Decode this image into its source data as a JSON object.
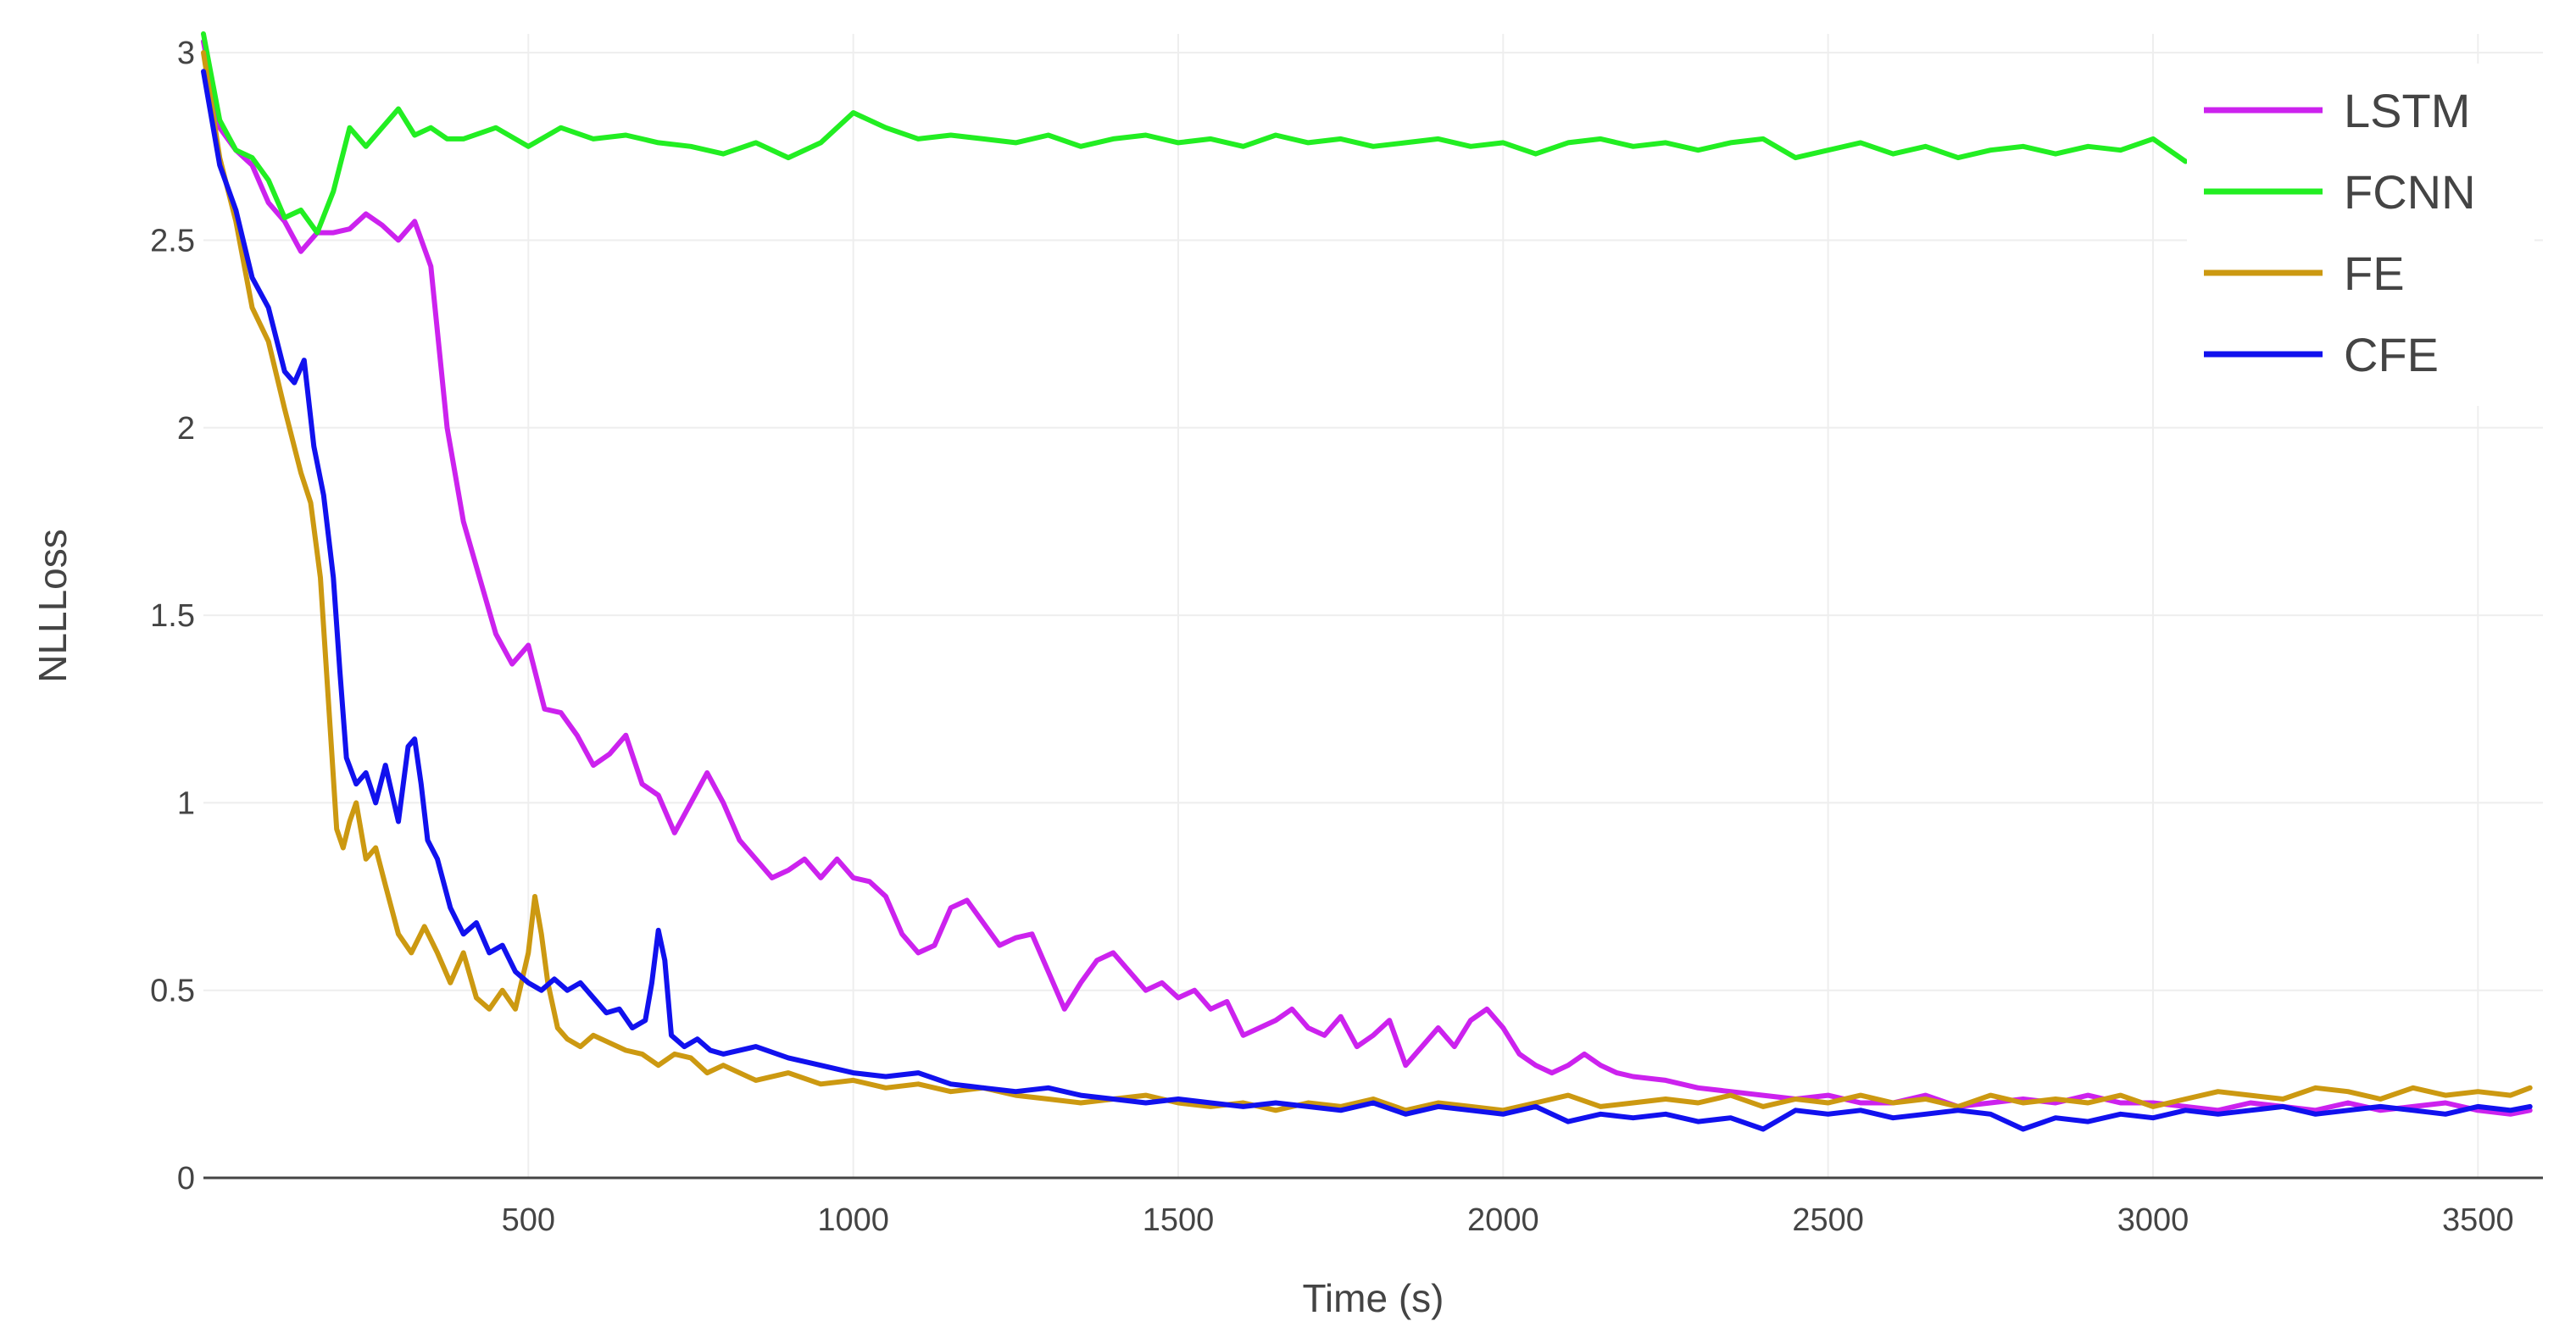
{
  "chart_data": {
    "type": "line",
    "title": "",
    "xlabel": "Time (s)",
    "ylabel": "NLLLoss",
    "xlim": [
      0,
      3600
    ],
    "ylim": [
      0,
      3.05
    ],
    "xticks": [
      500,
      1000,
      1500,
      2000,
      2500,
      3000,
      3500
    ],
    "xtick_labels": [
      "500",
      "1000",
      "1500",
      "2000",
      "2500",
      "3000",
      "3500"
    ],
    "yticks": [
      0,
      0.5,
      1,
      1.5,
      2,
      2.5,
      3
    ],
    "ytick_labels": [
      "0",
      "0.5",
      "1",
      "1.5",
      "2",
      "2.5",
      "3"
    ],
    "grid": true,
    "legend_position": "top-right",
    "series": [
      {
        "name": "LSTM",
        "color": "#cc22ee",
        "x": [
          0,
          25,
          50,
          75,
          100,
          125,
          150,
          175,
          200,
          225,
          250,
          275,
          300,
          325,
          350,
          375,
          400,
          425,
          450,
          475,
          500,
          525,
          550,
          575,
          600,
          625,
          650,
          675,
          700,
          725,
          750,
          775,
          800,
          825,
          850,
          875,
          900,
          925,
          950,
          975,
          1000,
          1025,
          1050,
          1075,
          1100,
          1125,
          1150,
          1175,
          1200,
          1225,
          1250,
          1275,
          1300,
          1325,
          1350,
          1375,
          1400,
          1425,
          1450,
          1475,
          1500,
          1525,
          1550,
          1575,
          1600,
          1625,
          1650,
          1675,
          1700,
          1725,
          1750,
          1775,
          1800,
          1825,
          1850,
          1875,
          1900,
          1925,
          1950,
          1975,
          2000,
          2025,
          2050,
          2075,
          2100,
          2125,
          2150,
          2175,
          2200,
          2250,
          2300,
          2350,
          2400,
          2450,
          2500,
          2550,
          2600,
          2650,
          2700,
          2750,
          2800,
          2850,
          2900,
          2950,
          3000,
          3050,
          3100,
          3150,
          3200,
          3250,
          3300,
          3350,
          3400,
          3450,
          3500,
          3550,
          3580
        ],
        "values": [
          3.03,
          2.8,
          2.74,
          2.7,
          2.6,
          2.55,
          2.47,
          2.52,
          2.52,
          2.53,
          2.57,
          2.54,
          2.5,
          2.55,
          2.43,
          2.0,
          1.75,
          1.6,
          1.45,
          1.37,
          1.42,
          1.25,
          1.24,
          1.18,
          1.1,
          1.13,
          1.18,
          1.05,
          1.02,
          0.92,
          1.0,
          1.08,
          1.0,
          0.9,
          0.85,
          0.8,
          0.82,
          0.85,
          0.8,
          0.85,
          0.8,
          0.79,
          0.75,
          0.65,
          0.6,
          0.62,
          0.72,
          0.74,
          0.68,
          0.62,
          0.64,
          0.65,
          0.55,
          0.45,
          0.52,
          0.58,
          0.6,
          0.55,
          0.5,
          0.52,
          0.48,
          0.5,
          0.45,
          0.47,
          0.38,
          0.4,
          0.42,
          0.45,
          0.4,
          0.38,
          0.43,
          0.35,
          0.38,
          0.42,
          0.3,
          0.35,
          0.4,
          0.35,
          0.42,
          0.45,
          0.4,
          0.33,
          0.3,
          0.28,
          0.3,
          0.33,
          0.3,
          0.28,
          0.27,
          0.26,
          0.24,
          0.23,
          0.22,
          0.21,
          0.22,
          0.2,
          0.2,
          0.22,
          0.19,
          0.2,
          0.21,
          0.2,
          0.22,
          0.2,
          0.2,
          0.19,
          0.18,
          0.2,
          0.19,
          0.18,
          0.2,
          0.18,
          0.19,
          0.2,
          0.18,
          0.17,
          0.18
        ]
      },
      {
        "name": "FCNN",
        "color": "#22ee22",
        "x": [
          0,
          25,
          50,
          75,
          100,
          125,
          150,
          175,
          200,
          225,
          250,
          275,
          300,
          325,
          350,
          375,
          400,
          450,
          500,
          550,
          600,
          650,
          700,
          750,
          800,
          850,
          900,
          950,
          1000,
          1050,
          1100,
          1150,
          1200,
          1250,
          1300,
          1350,
          1400,
          1450,
          1500,
          1550,
          1600,
          1650,
          1700,
          1750,
          1800,
          1850,
          1900,
          1950,
          2000,
          2050,
          2100,
          2150,
          2200,
          2250,
          2300,
          2350,
          2400,
          2450,
          2500,
          2550,
          2600,
          2650,
          2700,
          2750,
          2800,
          2850,
          2900,
          2950,
          3000,
          3050
        ],
        "values": [
          3.05,
          2.82,
          2.74,
          2.72,
          2.66,
          2.56,
          2.58,
          2.52,
          2.63,
          2.8,
          2.75,
          2.8,
          2.85,
          2.78,
          2.8,
          2.77,
          2.77,
          2.8,
          2.75,
          2.8,
          2.77,
          2.78,
          2.76,
          2.75,
          2.73,
          2.76,
          2.72,
          2.76,
          2.84,
          2.8,
          2.77,
          2.78,
          2.77,
          2.76,
          2.78,
          2.75,
          2.77,
          2.78,
          2.76,
          2.77,
          2.75,
          2.78,
          2.76,
          2.77,
          2.75,
          2.76,
          2.77,
          2.75,
          2.76,
          2.73,
          2.76,
          2.77,
          2.75,
          2.76,
          2.74,
          2.76,
          2.77,
          2.72,
          2.74,
          2.76,
          2.73,
          2.75,
          2.72,
          2.74,
          2.75,
          2.73,
          2.75,
          2.74,
          2.77,
          2.71
        ]
      },
      {
        "name": "FE",
        "color": "#cc9911",
        "x": [
          0,
          25,
          50,
          75,
          100,
          125,
          150,
          165,
          180,
          195,
          205,
          215,
          225,
          235,
          250,
          265,
          280,
          300,
          320,
          340,
          360,
          380,
          400,
          420,
          440,
          460,
          480,
          500,
          510,
          520,
          530,
          545,
          560,
          580,
          600,
          625,
          650,
          675,
          700,
          725,
          750,
          775,
          800,
          850,
          900,
          950,
          1000,
          1050,
          1100,
          1150,
          1200,
          1250,
          1300,
          1350,
          1400,
          1450,
          1500,
          1550,
          1600,
          1650,
          1700,
          1750,
          1800,
          1850,
          1900,
          1950,
          2000,
          2050,
          2100,
          2150,
          2200,
          2250,
          2300,
          2350,
          2400,
          2450,
          2500,
          2550,
          2600,
          2650,
          2700,
          2750,
          2800,
          2850,
          2900,
          2950,
          3000,
          3050,
          3100,
          3150,
          3200,
          3250,
          3300,
          3350,
          3400,
          3450,
          3500,
          3550,
          3580
        ],
        "values": [
          3.0,
          2.72,
          2.55,
          2.32,
          2.23,
          2.05,
          1.88,
          1.8,
          1.6,
          1.2,
          0.93,
          0.88,
          0.95,
          1.0,
          0.85,
          0.88,
          0.78,
          0.65,
          0.6,
          0.67,
          0.6,
          0.52,
          0.6,
          0.48,
          0.45,
          0.5,
          0.45,
          0.6,
          0.75,
          0.65,
          0.52,
          0.4,
          0.37,
          0.35,
          0.38,
          0.36,
          0.34,
          0.33,
          0.3,
          0.33,
          0.32,
          0.28,
          0.3,
          0.26,
          0.28,
          0.25,
          0.26,
          0.24,
          0.25,
          0.23,
          0.24,
          0.22,
          0.21,
          0.2,
          0.21,
          0.22,
          0.2,
          0.19,
          0.2,
          0.18,
          0.2,
          0.19,
          0.21,
          0.18,
          0.2,
          0.19,
          0.18,
          0.2,
          0.22,
          0.19,
          0.2,
          0.21,
          0.2,
          0.22,
          0.19,
          0.21,
          0.2,
          0.22,
          0.2,
          0.21,
          0.19,
          0.22,
          0.2,
          0.21,
          0.2,
          0.22,
          0.19,
          0.21,
          0.23,
          0.22,
          0.21,
          0.24,
          0.23,
          0.21,
          0.24,
          0.22,
          0.23,
          0.22,
          0.24
        ]
      },
      {
        "name": "CFE",
        "color": "#1111ee",
        "x": [
          0,
          25,
          50,
          75,
          100,
          125,
          140,
          155,
          170,
          185,
          200,
          210,
          220,
          235,
          250,
          265,
          280,
          300,
          315,
          325,
          335,
          345,
          360,
          380,
          400,
          420,
          440,
          460,
          480,
          500,
          520,
          540,
          560,
          580,
          600,
          620,
          640,
          660,
          680,
          690,
          700,
          710,
          720,
          740,
          760,
          780,
          800,
          850,
          900,
          950,
          1000,
          1050,
          1100,
          1150,
          1200,
          1250,
          1300,
          1350,
          1400,
          1450,
          1500,
          1550,
          1600,
          1650,
          1700,
          1750,
          1800,
          1850,
          1900,
          1950,
          2000,
          2050,
          2100,
          2150,
          2200,
          2250,
          2300,
          2350,
          2400,
          2450,
          2500,
          2550,
          2600,
          2650,
          2700,
          2750,
          2800,
          2850,
          2900,
          2950,
          3000,
          3050,
          3100,
          3150,
          3200,
          3250,
          3300,
          3350,
          3400,
          3450,
          3500,
          3550,
          3580
        ],
        "values": [
          2.95,
          2.7,
          2.58,
          2.4,
          2.32,
          2.15,
          2.12,
          2.18,
          1.95,
          1.82,
          1.6,
          1.35,
          1.12,
          1.05,
          1.08,
          1.0,
          1.1,
          0.95,
          1.15,
          1.17,
          1.05,
          0.9,
          0.85,
          0.72,
          0.65,
          0.68,
          0.6,
          0.62,
          0.55,
          0.52,
          0.5,
          0.53,
          0.5,
          0.52,
          0.48,
          0.44,
          0.45,
          0.4,
          0.42,
          0.52,
          0.66,
          0.58,
          0.38,
          0.35,
          0.37,
          0.34,
          0.33,
          0.35,
          0.32,
          0.3,
          0.28,
          0.27,
          0.28,
          0.25,
          0.24,
          0.23,
          0.24,
          0.22,
          0.21,
          0.2,
          0.21,
          0.2,
          0.19,
          0.2,
          0.19,
          0.18,
          0.2,
          0.17,
          0.19,
          0.18,
          0.17,
          0.19,
          0.15,
          0.17,
          0.16,
          0.17,
          0.15,
          0.16,
          0.13,
          0.18,
          0.17,
          0.18,
          0.16,
          0.17,
          0.18,
          0.17,
          0.13,
          0.16,
          0.15,
          0.17,
          0.16,
          0.18,
          0.17,
          0.18,
          0.19,
          0.17,
          0.18,
          0.19,
          0.18,
          0.17,
          0.19,
          0.18,
          0.19
        ]
      }
    ]
  }
}
